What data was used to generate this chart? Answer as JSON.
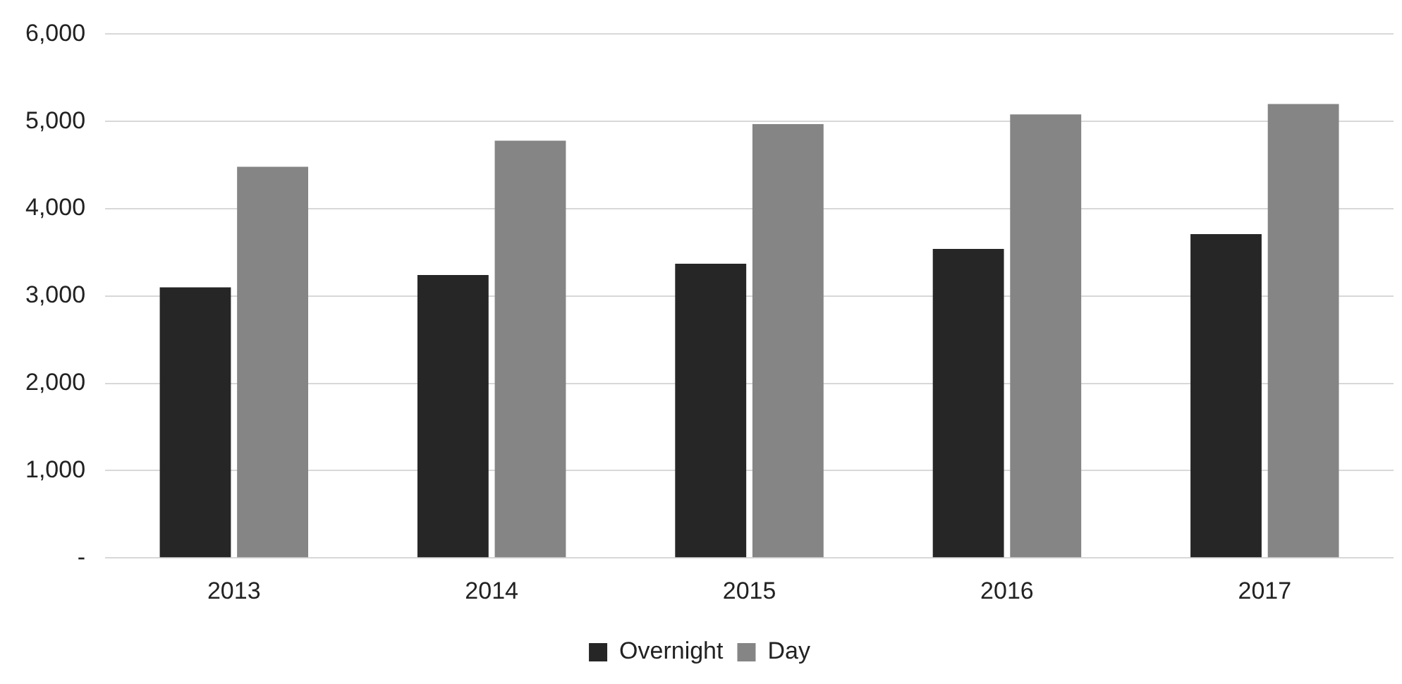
{
  "chart_data": {
    "type": "bar",
    "categories": [
      "2013",
      "2014",
      "2015",
      "2016",
      "2017"
    ],
    "series": [
      {
        "name": "Overnight",
        "color": "#262626",
        "values": [
          3100,
          3240,
          3370,
          3540,
          3710
        ]
      },
      {
        "name": "Day",
        "color": "#858585",
        "values": [
          4480,
          4780,
          4970,
          5080,
          5200
        ]
      }
    ],
    "ylim": [
      0,
      6000
    ],
    "yticks": [
      {
        "value": 0,
        "label": "-"
      },
      {
        "value": 1000,
        "label": "1,000"
      },
      {
        "value": 2000,
        "label": "2,000"
      },
      {
        "value": 3000,
        "label": "3,000"
      },
      {
        "value": 4000,
        "label": "4,000"
      },
      {
        "value": 5000,
        "label": "5,000"
      },
      {
        "value": 6000,
        "label": "6,000"
      }
    ],
    "grid": "y",
    "legend": "bottom"
  }
}
